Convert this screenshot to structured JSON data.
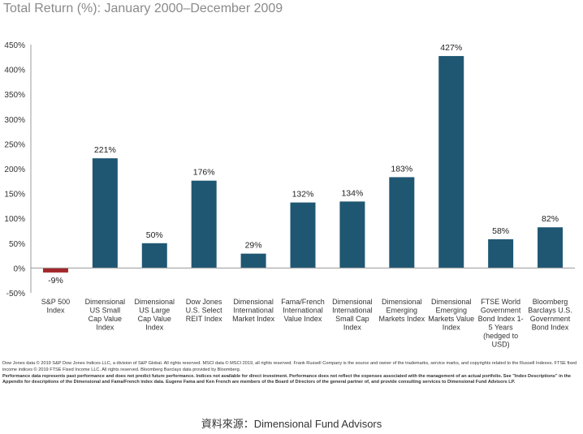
{
  "chart_data": {
    "type": "bar",
    "title": "Total Return (%): January 2000–December 2009",
    "categories": [
      [
        "S&P 500",
        "Index"
      ],
      [
        "Dimensional",
        "US Small",
        "Cap Value",
        "Index"
      ],
      [
        "Dimensional",
        "US Large",
        "Cap Value",
        "Index"
      ],
      [
        "Dow Jones",
        "U.S. Select",
        "REIT Index"
      ],
      [
        "Dimensional",
        "International",
        "Market Index"
      ],
      [
        "Fama/French",
        "International",
        "Value Index"
      ],
      [
        "Dimensional",
        "International",
        "Small Cap",
        "Index"
      ],
      [
        "Dimensional",
        "Emerging",
        "Markets Index"
      ],
      [
        "Dimensional",
        "Emerging",
        "Markets Value",
        "Index"
      ],
      [
        "FTSE World",
        "Government",
        "Bond Index 1-",
        "5 Years",
        "(hedged to",
        "USD)"
      ],
      [
        "Bloomberg",
        "Barclays U.S.",
        "Government",
        "Bond Index"
      ]
    ],
    "values": [
      -9,
      221,
      50,
      176,
      29,
      132,
      134,
      183,
      427,
      58,
      82
    ],
    "value_labels": [
      "-9%",
      "221%",
      "50%",
      "176%",
      "29%",
      "132%",
      "134%",
      "183%",
      "427%",
      "58%",
      "82%"
    ],
    "ylim": [
      -50,
      450
    ],
    "yticks": [
      -50,
      0,
      50,
      100,
      150,
      200,
      250,
      300,
      350,
      400,
      450
    ],
    "ytick_labels": [
      "-50%",
      "0%",
      "50%",
      "100%",
      "150%",
      "200%",
      "250%",
      "300%",
      "350%",
      "400%",
      "450%"
    ],
    "xlabel": "",
    "ylabel": "",
    "grid": false,
    "colors": {
      "positive": "#1f5773",
      "negative": "#a3282b",
      "axis": "#999999",
      "title": "#8a8a8a"
    }
  },
  "notes": {
    "line1": "Dow Jones data © 2019 S&P Dow Jones Indices LLC, a division of S&P Global. All rights reserved. MSCI data © MSCI 2019, all rights reserved. Frank Russell Company is the source and owner of the trademarks, service marks, and copyrights related to the Russell Indexes. FTSE fixed income indices © 2019 FTSE Fixed Income LLC. All rights reserved. Bloomberg Barclays data provided by Bloomberg.",
    "line2": "Performance data represents past performance and does not predict future performance. Indices not available for direct investment. Performance does not reflect the expenses associated with the management of an actual portfolio. See \"Index Descriptions\" in the Appendix for descriptions of the Dimensional and Fama/French index data. Eugene Fama and Ken French are members of the Board of Directors of the general partner of, and provide consulting services to Dimensional Fund Advisors LP."
  },
  "source": "資料來源：Dimensional Fund Advisors"
}
